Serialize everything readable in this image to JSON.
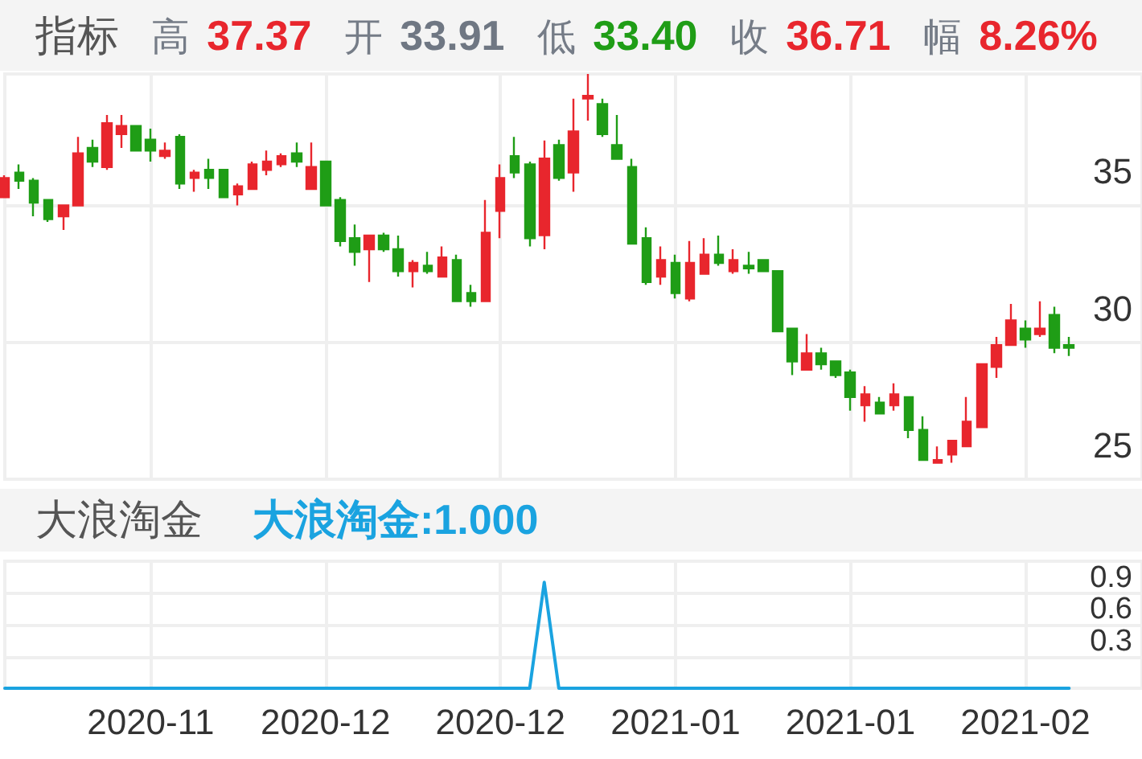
{
  "chart_data": [
    {
      "type": "candlestick",
      "title": "指标",
      "annotations": [
        "高 37.37",
        "开 33.91",
        "低 33.40",
        "收 36.71",
        "幅 8.26%"
      ],
      "categories": [
        null,
        null,
        null,
        null,
        null,
        null,
        null,
        null,
        null,
        null,
        "2020-11",
        null,
        null,
        null,
        null,
        null,
        null,
        null,
        null,
        null,
        null,
        null,
        "2020-12",
        null,
        null,
        null,
        null,
        null,
        null,
        null,
        null,
        null,
        null,
        null,
        "2020-12",
        null,
        null,
        null,
        null,
        null,
        null,
        null,
        null,
        null,
        null,
        null,
        "2021-01",
        null,
        null,
        null,
        null,
        null,
        null,
        null,
        null,
        null,
        null,
        null,
        "2021-01",
        null,
        null,
        null,
        null,
        null,
        null,
        null,
        null,
        null,
        null,
        null,
        "2021-02",
        null,
        null,
        null
      ],
      "ohlc": [
        [
          35.3,
          36.1,
          35.3,
          36.0
        ],
        [
          36.2,
          36.5,
          35.6,
          35.9
        ],
        [
          35.9,
          36.0,
          34.6,
          35.1
        ],
        [
          35.2,
          35.2,
          34.4,
          34.5
        ],
        [
          34.6,
          35.0,
          34.1,
          35.0
        ],
        [
          35.0,
          37.5,
          35.0,
          36.9
        ],
        [
          37.1,
          37.4,
          36.4,
          36.6
        ],
        [
          36.4,
          38.3,
          36.3,
          38.0
        ],
        [
          37.6,
          38.3,
          37.1,
          37.9
        ],
        [
          37.9,
          37.9,
          37.0,
          37.0
        ],
        [
          37.4,
          37.8,
          36.6,
          37.0
        ],
        [
          36.8,
          37.3,
          36.7,
          37.0
        ],
        [
          37.5,
          37.6,
          35.6,
          35.8
        ],
        [
          36.0,
          36.3,
          35.5,
          36.2
        ],
        [
          36.3,
          36.7,
          35.6,
          36.0
        ],
        [
          36.3,
          36.3,
          35.3,
          35.3
        ],
        [
          35.4,
          35.8,
          35.0,
          35.7
        ],
        [
          35.6,
          36.6,
          35.6,
          36.5
        ],
        [
          36.3,
          37.0,
          36.1,
          36.6
        ],
        [
          36.5,
          36.9,
          36.4,
          36.8
        ],
        [
          36.9,
          37.3,
          36.4,
          36.6
        ],
        [
          35.6,
          37.3,
          35.6,
          36.4
        ],
        [
          36.6,
          36.6,
          35.0,
          35.0
        ],
        [
          35.2,
          35.3,
          33.5,
          33.7
        ],
        [
          33.8,
          34.3,
          32.8,
          33.3
        ],
        [
          33.4,
          33.9,
          32.2,
          33.9
        ],
        [
          33.9,
          34.0,
          33.3,
          33.4
        ],
        [
          33.4,
          33.9,
          32.4,
          32.6
        ],
        [
          32.6,
          33.0,
          32.0,
          32.9
        ],
        [
          32.8,
          33.3,
          32.5,
          32.6
        ],
        [
          32.4,
          33.5,
          32.4,
          33.1
        ],
        [
          33.0,
          33.2,
          31.5,
          31.5
        ],
        [
          31.8,
          32.1,
          31.3,
          31.5
        ],
        [
          31.5,
          35.2,
          31.5,
          34.0
        ],
        [
          34.8,
          36.5,
          33.8,
          36.0
        ],
        [
          36.8,
          37.5,
          36.0,
          36.2
        ],
        [
          36.5,
          36.6,
          33.5,
          33.8
        ],
        [
          33.91,
          37.37,
          33.4,
          36.71
        ],
        [
          37.2,
          37.4,
          35.9,
          36.0
        ],
        [
          36.2,
          38.9,
          35.5,
          37.7
        ],
        [
          38.9,
          39.8,
          38.1,
          39.0
        ],
        [
          38.7,
          38.9,
          37.5,
          37.6
        ],
        [
          37.2,
          38.3,
          36.7,
          36.7
        ],
        [
          36.4,
          36.7,
          33.6,
          33.6
        ],
        [
          33.8,
          34.2,
          32.1,
          32.2
        ],
        [
          32.4,
          33.5,
          32.1,
          33.0
        ],
        [
          32.9,
          33.2,
          31.6,
          31.8
        ],
        [
          31.6,
          33.7,
          31.5,
          32.9
        ],
        [
          32.5,
          33.8,
          32.5,
          33.2
        ],
        [
          33.2,
          33.9,
          32.8,
          32.9
        ],
        [
          32.6,
          33.4,
          32.5,
          33.0
        ],
        [
          32.8,
          33.3,
          32.5,
          32.7
        ],
        [
          33.0,
          33.0,
          32.6,
          32.6
        ],
        [
          32.6,
          32.6,
          30.4,
          30.4
        ],
        [
          30.5,
          30.5,
          28.8,
          29.3
        ],
        [
          29.0,
          30.3,
          29.0,
          29.6
        ],
        [
          29.6,
          29.8,
          29.0,
          29.2
        ],
        [
          29.3,
          29.3,
          28.7,
          28.8
        ],
        [
          28.9,
          29.0,
          27.5,
          28.0
        ],
        [
          27.7,
          28.4,
          27.1,
          28.1
        ],
        [
          27.8,
          28.0,
          27.4,
          27.4
        ],
        [
          27.7,
          28.5,
          27.5,
          28.1
        ],
        [
          28.0,
          28.0,
          26.5,
          26.8
        ],
        [
          26.8,
          27.3,
          25.7,
          25.7
        ],
        [
          25.6,
          26.2,
          25.6,
          25.7
        ],
        [
          25.9,
          26.4,
          25.6,
          26.4
        ],
        [
          26.2,
          28.0,
          26.2,
          27.1
        ],
        [
          26.9,
          29.2,
          26.9,
          29.2
        ],
        [
          29.1,
          30.2,
          28.7,
          29.9
        ],
        [
          29.9,
          31.4,
          29.9,
          30.8
        ],
        [
          30.5,
          30.8,
          29.8,
          30.1
        ],
        [
          30.3,
          31.5,
          30.2,
          30.5
        ],
        [
          31.0,
          31.3,
          29.6,
          29.8
        ],
        [
          29.9,
          30.2,
          29.5,
          29.8
        ]
      ],
      "colors": [
        "#e8262d",
        "#1f9d16",
        "#1f9d16",
        "#1f9d16",
        "#e8262d",
        "#e8262d",
        "#1f9d16",
        "#e8262d",
        "#e8262d",
        "#1f9d16",
        "#1f9d16",
        "#e8262d",
        "#1f9d16",
        "#e8262d",
        "#1f9d16",
        "#1f9d16",
        "#e8262d",
        "#e8262d",
        "#e8262d",
        "#e8262d",
        "#1f9d16",
        "#e8262d",
        "#1f9d16",
        "#1f9d16",
        "#1f9d16",
        "#e8262d",
        "#1f9d16",
        "#1f9d16",
        "#e8262d",
        "#1f9d16",
        "#e8262d",
        "#1f9d16",
        "#1f9d16",
        "#e8262d",
        "#e8262d",
        "#1f9d16",
        "#1f9d16",
        "#e8262d",
        "#1f9d16",
        "#e8262d",
        "#e8262d",
        "#1f9d16",
        "#1f9d16",
        "#1f9d16",
        "#1f9d16",
        "#e8262d",
        "#1f9d16",
        "#e8262d",
        "#e8262d",
        "#1f9d16",
        "#e8262d",
        "#1f9d16",
        "#1f9d16",
        "#1f9d16",
        "#1f9d16",
        "#e8262d",
        "#1f9d16",
        "#1f9d16",
        "#1f9d16",
        "#e8262d",
        "#1f9d16",
        "#e8262d",
        "#1f9d16",
        "#1f9d16",
        "#e8262d",
        "#e8262d",
        "#e8262d",
        "#e8262d",
        "#e8262d",
        "#e8262d",
        "#1f9d16",
        "#e8262d",
        "#1f9d16",
        "#1f9d16"
      ],
      "ylim": [
        25,
        39.8
      ],
      "yticks": [
        25,
        30,
        35
      ],
      "grid": true,
      "tick_labels": "y"
    },
    {
      "type": "line",
      "title": "大浪淘金",
      "annotations": [
        ":1.000"
      ],
      "categories": [
        null,
        null,
        null,
        null,
        null,
        null,
        null,
        null,
        null,
        null,
        "2020-11",
        null,
        null,
        null,
        null,
        null,
        null,
        null,
        null,
        null,
        null,
        null,
        "2020-12",
        null,
        null,
        null,
        null,
        null,
        null,
        null,
        null,
        null,
        null,
        null,
        "2020-12",
        null,
        null,
        null,
        null,
        null,
        null,
        null,
        null,
        null,
        null,
        null,
        "2021-01",
        null,
        null,
        null,
        null,
        null,
        null,
        null,
        null,
        null,
        null,
        null,
        "2021-01",
        null,
        null,
        null,
        null,
        null,
        null,
        null,
        null,
        null,
        null,
        null,
        "2021-02",
        null,
        null,
        null
      ],
      "series": [
        {
          "name": "大浪淘金",
          "color": "#1aa3e0",
          "values": [
            0,
            0,
            0,
            0,
            0,
            0,
            0,
            0,
            0,
            0,
            0,
            0,
            0,
            0,
            0,
            0,
            0,
            0,
            0,
            0,
            0,
            0,
            0,
            0,
            0,
            0,
            0,
            0,
            0,
            0,
            0,
            0,
            0,
            0,
            0,
            0,
            0,
            1,
            0,
            0,
            0,
            0,
            0,
            0,
            0,
            0,
            0,
            0,
            0,
            0,
            0,
            0,
            0,
            0,
            0,
            0,
            0,
            0,
            0,
            0,
            0,
            0,
            0,
            0,
            0,
            0,
            0,
            0,
            0,
            0,
            0,
            0,
            0,
            0
          ]
        }
      ],
      "legend": "top left",
      "marker": "none",
      "ylim": [
        0,
        1.2
      ],
      "yticks": [
        0.3,
        0.6,
        0.9
      ],
      "grid": true
    }
  ]
}
